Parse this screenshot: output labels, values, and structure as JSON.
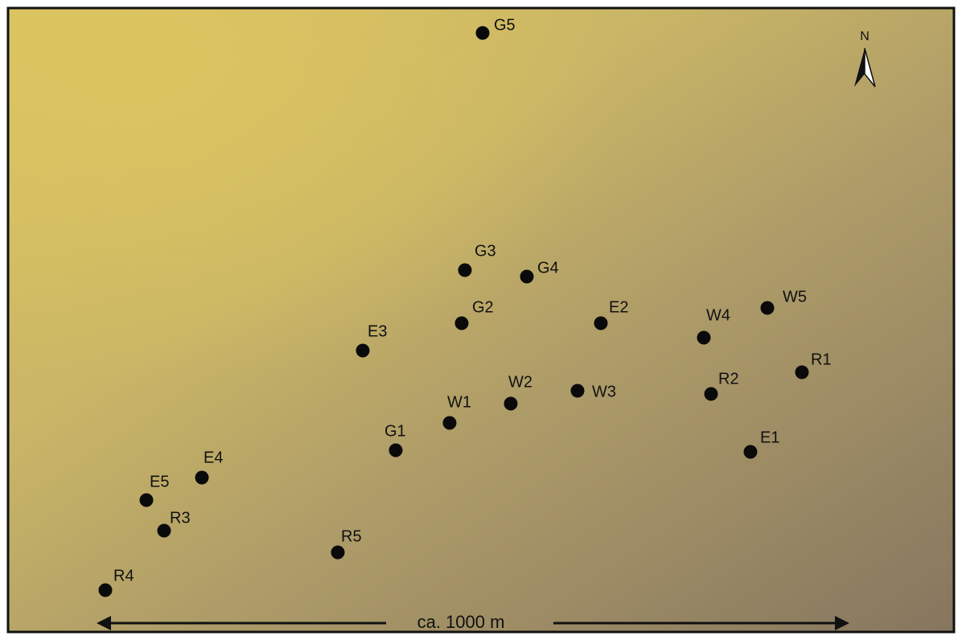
{
  "map": {
    "north_label": "N",
    "scale_label": "ca. 1000 m",
    "sites": [
      "G5",
      "G3",
      "G4",
      "G2",
      "E2",
      "W4",
      "W5",
      "E3",
      "R1",
      "R2",
      "W3",
      "W2",
      "W1",
      "G1",
      "E1",
      "E4",
      "E5",
      "R3",
      "R5",
      "R4"
    ]
  }
}
